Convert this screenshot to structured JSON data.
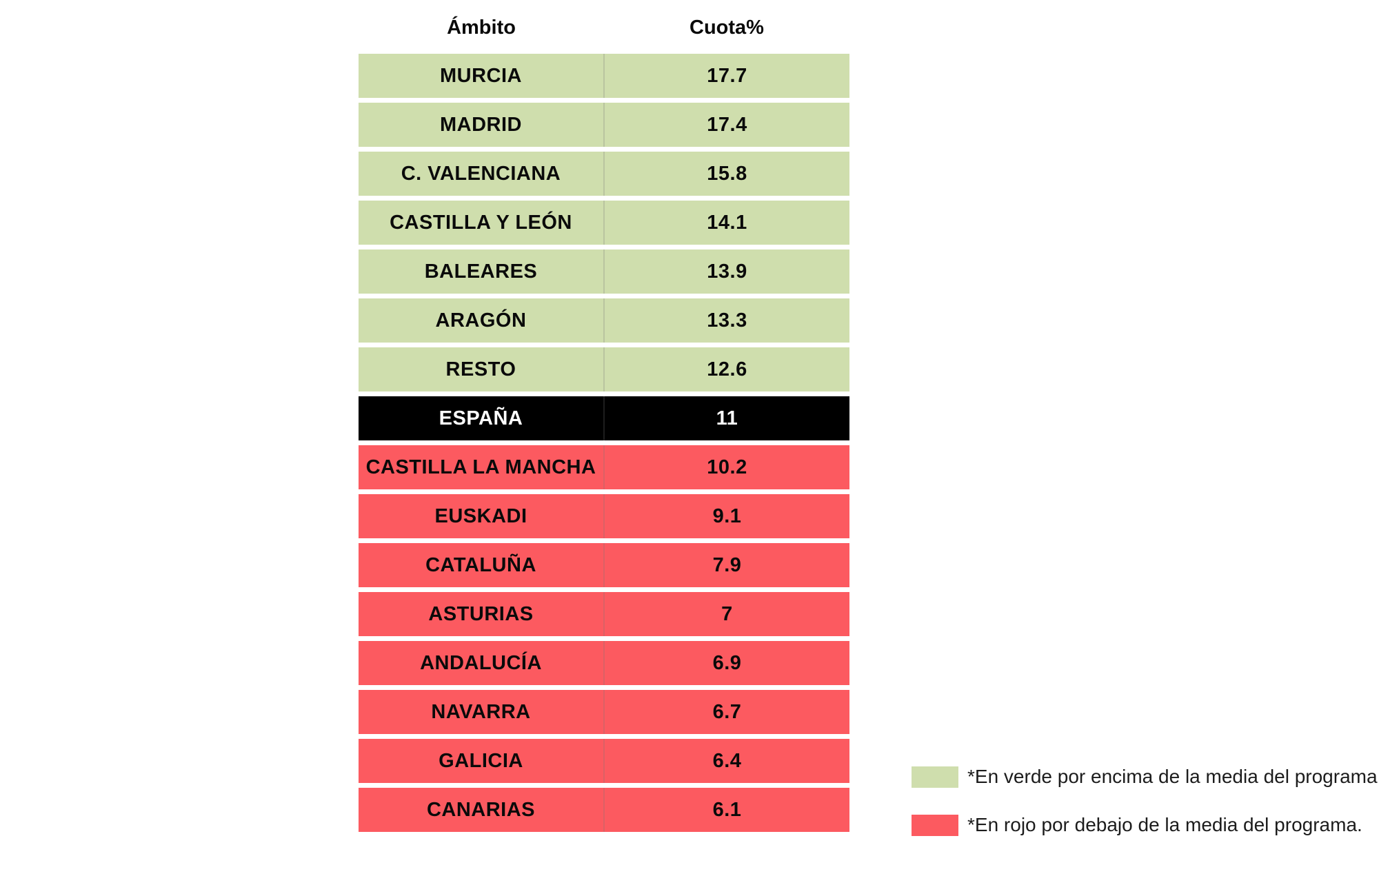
{
  "chart_data": {
    "type": "table",
    "columns": [
      "Ámbito",
      "Cuota%"
    ],
    "rows": [
      {
        "region": "MURCIA",
        "cuota": 17.7,
        "status": "above"
      },
      {
        "region": "MADRID",
        "cuota": 17.4,
        "status": "above"
      },
      {
        "region": "C. VALENCIANA",
        "cuota": 15.8,
        "status": "above"
      },
      {
        "region": "CASTILLA Y LEÓN",
        "cuota": 14.1,
        "status": "above"
      },
      {
        "region": "BALEARES",
        "cuota": 13.9,
        "status": "above"
      },
      {
        "region": "ARAGÓN",
        "cuota": 13.3,
        "status": "above"
      },
      {
        "region": "RESTO",
        "cuota": 12.6,
        "status": "above"
      },
      {
        "region": "ESPAÑA",
        "cuota": 11,
        "status": "average"
      },
      {
        "region": "CASTILLA LA MANCHA",
        "cuota": 10.2,
        "status": "below"
      },
      {
        "region": "EUSKADI",
        "cuota": 9.1,
        "status": "below"
      },
      {
        "region": "CATALUÑA",
        "cuota": 7.9,
        "status": "below"
      },
      {
        "region": "ASTURIAS",
        "cuota": 7,
        "status": "below"
      },
      {
        "region": "ANDALUCÍA",
        "cuota": 6.9,
        "status": "below"
      },
      {
        "region": "NAVARRA",
        "cuota": 6.7,
        "status": "below"
      },
      {
        "region": "GALICIA",
        "cuota": 6.4,
        "status": "below"
      },
      {
        "region": "CANARIAS",
        "cuota": 6.1,
        "status": "below"
      }
    ],
    "legend": [
      {
        "swatch": "green",
        "text": "*En verde por encima de la media del programa."
      },
      {
        "swatch": "red",
        "text": "*En rojo por debajo de la media del programa."
      }
    ],
    "layout": "conditional-color table, green above average, red below average, black average row"
  },
  "colors": {
    "above": "#cfdead",
    "below": "#fc5a60",
    "average_bg": "#000000",
    "average_text": "#ffffff",
    "text": "#0a0a0a"
  }
}
